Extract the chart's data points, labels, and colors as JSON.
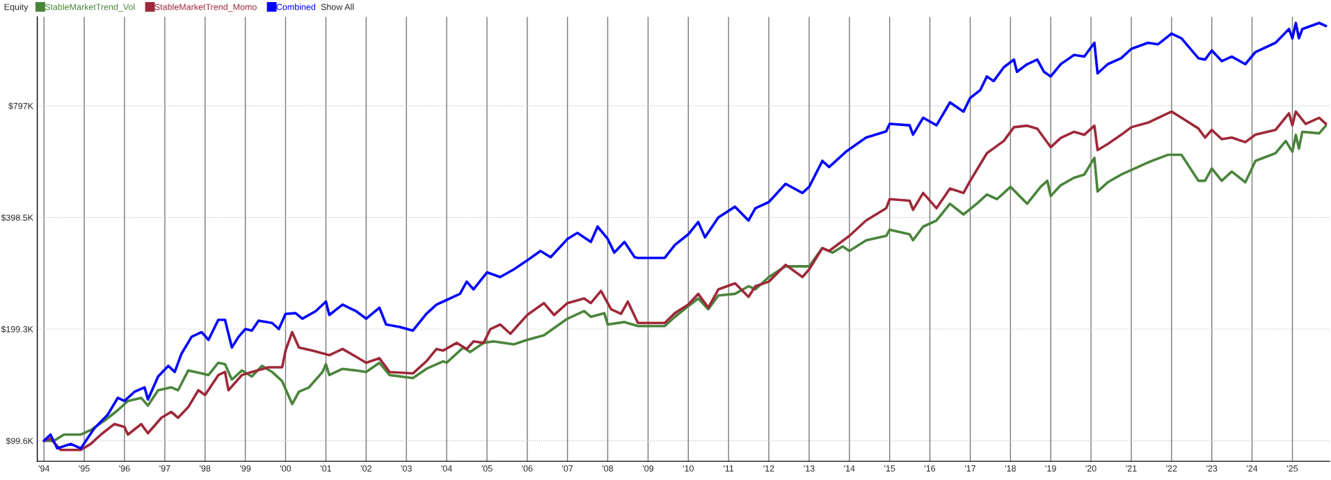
{
  "chart_data": {
    "type": "line",
    "title": "Equity",
    "annotations": [
      "Show All"
    ],
    "legend": "top left",
    "grid": true,
    "log": "y",
    "line_style": "solid",
    "marker": "none",
    "xlim": [
      "1993-11-01",
      "2025-12-05"
    ],
    "xticks": [
      {
        "value": "1994-01-01",
        "label": "'94"
      },
      {
        "value": "1995-01-01",
        "label": "'95"
      },
      {
        "value": "1996-01-01",
        "label": "'96"
      },
      {
        "value": "1997-01-01",
        "label": "'97"
      },
      {
        "value": "1998-01-01",
        "label": "'98"
      },
      {
        "value": "1999-01-01",
        "label": "'99"
      },
      {
        "value": "2000-01-01",
        "label": "'00"
      },
      {
        "value": "2001-01-01",
        "label": "'01"
      },
      {
        "value": "2002-01-01",
        "label": "'02"
      },
      {
        "value": "2003-01-01",
        "label": "'03"
      },
      {
        "value": "2004-01-01",
        "label": "'04"
      },
      {
        "value": "2005-01-01",
        "label": "'05"
      },
      {
        "value": "2006-01-01",
        "label": "'06"
      },
      {
        "value": "2007-01-01",
        "label": "'07"
      },
      {
        "value": "2008-01-01",
        "label": "'08"
      },
      {
        "value": "2009-01-01",
        "label": "'09"
      },
      {
        "value": "2010-01-01",
        "label": "'10"
      },
      {
        "value": "2011-01-01",
        "label": "'11"
      },
      {
        "value": "2012-01-01",
        "label": "'12"
      },
      {
        "value": "2013-01-01",
        "label": "'13"
      },
      {
        "value": "2014-01-01",
        "label": "'14"
      },
      {
        "value": "2015-01-01",
        "label": "'15"
      },
      {
        "value": "2016-01-01",
        "label": "'16"
      },
      {
        "value": "2017-01-01",
        "label": "'17"
      },
      {
        "value": "2018-01-01",
        "label": "'18"
      },
      {
        "value": "2019-01-01",
        "label": "'19"
      },
      {
        "value": "2020-01-01",
        "label": "'20"
      },
      {
        "value": "2021-01-01",
        "label": "'21"
      },
      {
        "value": "2022-01-01",
        "label": "'22"
      },
      {
        "value": "2023-01-01",
        "label": "'23"
      },
      {
        "value": "2024-01-01",
        "label": "'24"
      },
      {
        "value": "2025-01-01",
        "label": "'25"
      }
    ],
    "ylim": [
      87.7,
      1385
    ],
    "yticks": [
      {
        "value": 99.6,
        "label": "$99.6K"
      },
      {
        "value": 199.3,
        "label": "$199.3K"
      },
      {
        "value": 398.5,
        "label": "$398.5K"
      },
      {
        "value": 797,
        "label": "$797K"
      }
    ],
    "series": [
      {
        "name": "StableMarketTrend_Vol",
        "color": "#4a843b",
        "x": [
          "1994-01",
          "1994-04",
          "1994-07",
          "1994-12",
          "1995-03",
          "1995-07",
          "1995-11",
          "1996-02",
          "1996-06",
          "1996-08",
          "1996-11",
          "1997-03",
          "1997-05",
          "1997-08",
          "1997-12",
          "1998-02",
          "1998-05",
          "1998-07",
          "1998-09",
          "1998-12",
          "1999-03",
          "1999-06",
          "1999-09",
          "1999-12",
          "2000-03",
          "2000-05",
          "2000-08",
          "2000-12",
          "2001-01",
          "2001-02",
          "2001-06",
          "2001-10",
          "2002-01",
          "2002-05",
          "2002-08",
          "2003-03",
          "2003-07",
          "2003-12",
          "2004-01",
          "2004-06",
          "2004-08",
          "2004-12",
          "2005-03",
          "2005-09",
          "2006-01",
          "2006-06",
          "2007-01",
          "2007-06",
          "2007-08",
          "2007-12",
          "2008-01",
          "2008-06",
          "2008-10",
          "2009-06",
          "2009-09",
          "2010-01",
          "2010-04",
          "2010-07",
          "2010-10",
          "2011-03",
          "2011-07",
          "2011-09",
          "2012-01",
          "2012-06",
          "2012-11",
          "2013-01",
          "2013-05",
          "2013-08",
          "2013-11",
          "2014-01",
          "2014-06",
          "2014-12",
          "2015-01",
          "2015-07",
          "2015-08",
          "2015-11",
          "2016-03",
          "2016-07",
          "2016-11",
          "2017-03",
          "2017-06",
          "2017-09",
          "2018-01",
          "2018-06",
          "2018-10",
          "2018-12",
          "2019-01",
          "2019-04",
          "2019-08",
          "2019-11",
          "2020-02",
          "2020-03",
          "2020-06",
          "2020-10",
          "2021-01",
          "2021-06",
          "2021-12",
          "2022-04",
          "2022-09",
          "2022-11",
          "2023-01",
          "2023-04",
          "2023-07",
          "2023-11",
          "2024-02",
          "2024-08",
          "2024-11",
          "2025-01",
          "2025-02",
          "2025-03",
          "2025-04",
          "2025-09",
          "2025-11"
        ],
        "values": [
          99.6,
          99.6,
          103.5,
          103.5,
          106.5,
          112.7,
          120.4,
          127.5,
          130,
          123.9,
          136.3,
          138.8,
          136.3,
          154.1,
          151.3,
          149.8,
          161.7,
          160.2,
          145.6,
          154.1,
          148.4,
          158.6,
          152.7,
          144.2,
          125.1,
          135,
          138.8,
          152.7,
          160.2,
          149.8,
          155.7,
          154.1,
          152.7,
          161.7,
          149.8,
          147,
          155.7,
          163.2,
          161.7,
          177.8,
          172.8,
          182.9,
          184.6,
          181.2,
          186.4,
          191.7,
          212.6,
          222.8,
          215,
          220,
          205,
          208.2,
          203,
          203,
          215,
          229.8,
          241,
          225.4,
          245.5,
          248,
          260,
          255,
          275.3,
          294.2,
          294.2,
          294.2,
          329.6,
          320.4,
          332.9,
          323.6,
          345.8,
          355.5,
          369.4,
          359,
          345.8,
          376.5,
          391,
          434,
          406,
          434,
          459.5,
          446.5,
          481.8,
          434,
          481.8,
          500.5,
          455,
          486.6,
          510,
          520,
          577,
          468.2,
          495.7,
          520,
          534.8,
          560.7,
          588.2,
          588.2,
          500.5,
          500.5,
          540,
          500.5,
          530,
          495.7,
          566.3,
          593.8,
          640.8,
          599.4,
          665.5,
          611,
          678.2,
          671.9,
          704.5
        ]
      },
      {
        "name": "StableMarketTrend_Momo",
        "color": "#9e2838",
        "x": [
          "1994-01",
          "1994-03",
          "1994-06",
          "1994-12",
          "1995-03",
          "1995-06",
          "1995-10",
          "1996-01",
          "1996-02",
          "1996-06",
          "1996-08",
          "1996-12",
          "1997-03",
          "1997-05",
          "1997-08",
          "1997-11",
          "1998-01",
          "1998-05",
          "1998-07",
          "1998-08",
          "1998-12",
          "1999-03",
          "1999-08",
          "1999-12",
          "2000-01",
          "2000-03",
          "2000-05",
          "2000-09",
          "2001-02",
          "2001-06",
          "2001-10",
          "2002-01",
          "2002-05",
          "2002-08",
          "2003-03",
          "2003-07",
          "2003-10",
          "2003-12",
          "2004-04",
          "2004-07",
          "2004-09",
          "2004-12",
          "2005-02",
          "2005-05",
          "2005-08",
          "2006-01",
          "2006-06",
          "2006-09",
          "2007-01",
          "2007-06",
          "2007-08",
          "2007-11",
          "2008-02",
          "2008-05",
          "2008-07",
          "2008-10",
          "2009-06",
          "2009-09",
          "2010-01",
          "2010-04",
          "2010-07",
          "2010-10",
          "2011-03",
          "2011-07",
          "2011-09",
          "2012-01",
          "2012-06",
          "2012-11",
          "2013-01",
          "2013-05",
          "2013-07",
          "2014-01",
          "2014-06",
          "2014-12",
          "2015-01",
          "2015-07",
          "2015-08",
          "2015-11",
          "2016-03",
          "2016-07",
          "2016-11",
          "2017-01",
          "2017-06",
          "2017-11",
          "2018-02",
          "2018-06",
          "2018-09",
          "2019-01",
          "2019-04",
          "2019-08",
          "2019-11",
          "2020-02",
          "2020-03",
          "2020-06",
          "2020-10",
          "2021-01",
          "2021-06",
          "2022-01",
          "2022-04",
          "2022-09",
          "2022-11",
          "2023-01",
          "2023-04",
          "2023-07",
          "2023-11",
          "2024-02",
          "2024-08",
          "2024-12",
          "2025-01",
          "2025-02",
          "2025-05",
          "2025-09",
          "2025-11"
        ],
        "values": [
          99.6,
          101,
          94.1,
          94.1,
          97.7,
          103.5,
          110.5,
          108.5,
          103.5,
          110.5,
          104.4,
          114.9,
          119.2,
          114.9,
          122.7,
          136.3,
          132.4,
          149.8,
          152.7,
          136.3,
          149.8,
          152.7,
          157.2,
          157.2,
          174.4,
          195.5,
          177.8,
          174.4,
          169.5,
          176.1,
          167.9,
          161.7,
          166.3,
          152.7,
          151.3,
          163.2,
          176.1,
          174.4,
          182.9,
          176.1,
          184.6,
          182.9,
          199.3,
          205,
          193.6,
          217.5,
          234.2,
          217.5,
          234.2,
          241,
          234.2,
          252.7,
          225.4,
          219,
          236.4,
          207,
          207,
          220,
          232,
          248,
          227.6,
          255,
          264.8,
          243.3,
          260,
          267.5,
          297,
          275.3,
          288.6,
          329.6,
          323.6,
          355.5,
          391,
          422,
          446.5,
          442.2,
          417.7,
          464,
          422,
          477,
          464,
          500.5,
          593.8,
          640.8,
          697.8,
          704.5,
          691.4,
          616.5,
          652.8,
          678.2,
          665.5,
          704.5,
          605.3,
          628.8,
          665.5,
          697.8,
          717.7,
          769,
          740,
          692.6,
          654.4,
          686.2,
          648,
          654.4,
          636,
          666.3,
          686.2,
          761,
          706,
          769,
          712.5,
          740,
          712.5
        ]
      },
      {
        "name": "Combined",
        "color": "#0000ff",
        "x": [
          "1994-01",
          "1994-03",
          "1994-05",
          "1994-09",
          "1994-12",
          "1995-04",
          "1995-08",
          "1995-11",
          "1996-01",
          "1996-04",
          "1996-07",
          "1996-08",
          "1996-11",
          "1997-02",
          "1997-04",
          "1997-06",
          "1997-09",
          "1997-12",
          "1998-02",
          "1998-05",
          "1998-07",
          "1998-09",
          "1998-11",
          "1999-01",
          "1999-03",
          "1999-05",
          "1999-09",
          "1999-11",
          "2000-01",
          "2000-04",
          "2000-06",
          "2000-10",
          "2001-01",
          "2001-02",
          "2001-06",
          "2001-10",
          "2002-01",
          "2002-05",
          "2002-07",
          "2002-11",
          "2003-03",
          "2003-07",
          "2003-10",
          "2003-12",
          "2004-05",
          "2004-07",
          "2004-09",
          "2005-01",
          "2005-05",
          "2005-09",
          "2006-01",
          "2006-05",
          "2006-08",
          "2007-01",
          "2007-04",
          "2007-08",
          "2007-10",
          "2008-01",
          "2008-03",
          "2008-06",
          "2008-09",
          "2008-10",
          "2009-06",
          "2009-09",
          "2010-01",
          "2010-04",
          "2010-06",
          "2010-10",
          "2011-03",
          "2011-07",
          "2011-09",
          "2012-01",
          "2012-06",
          "2012-11",
          "2013-01",
          "2013-05",
          "2013-07",
          "2013-12",
          "2014-06",
          "2014-12",
          "2015-01",
          "2015-07",
          "2015-08",
          "2015-11",
          "2016-03",
          "2016-07",
          "2016-11",
          "2017-01",
          "2017-04",
          "2017-06",
          "2017-08",
          "2017-11",
          "2018-02",
          "2018-03",
          "2018-06",
          "2018-09",
          "2018-11",
          "2019-01",
          "2019-04",
          "2019-08",
          "2019-11",
          "2020-02",
          "2020-03",
          "2020-06",
          "2020-10",
          "2021-01",
          "2021-06",
          "2021-09",
          "2022-01",
          "2022-04",
          "2022-09",
          "2022-11",
          "2023-01",
          "2023-04",
          "2023-07",
          "2023-11",
          "2024-02",
          "2024-08",
          "2024-12",
          "2025-01",
          "2025-02",
          "2025-03",
          "2025-04",
          "2025-09",
          "2025-11"
        ],
        "values": [
          99.6,
          103.5,
          95,
          97.7,
          95,
          107.5,
          117,
          130,
          127.5,
          135,
          138.8,
          128.7,
          148.4,
          158.6,
          152.7,
          171,
          190,
          195.5,
          186.4,
          211,
          211,
          177.8,
          190,
          199.3,
          197.4,
          210,
          207,
          199.3,
          219,
          220,
          212.6,
          222.8,
          236.4,
          217.5,
          232,
          222.8,
          212.6,
          227.6,
          205,
          202,
          197.4,
          219,
          232,
          236.4,
          248,
          267.5,
          255,
          283.4,
          275.3,
          288.6,
          305.3,
          323.6,
          311.4,
          348.8,
          362.1,
          342.3,
          376.5,
          348.8,
          320.4,
          342.3,
          311.4,
          310,
          310,
          336,
          359,
          387.4,
          352.3,
          398.5,
          426,
          391,
          422,
          438.4,
          491,
          464,
          481.8,
          566.3,
          545,
          599.4,
          654.4,
          680,
          712.5,
          706,
          666.3,
          740,
          706,
          814,
          769,
          837,
          878,
          956.4,
          929,
          1012,
          1062,
          984,
          1032,
          1062,
          984,
          956.4,
          1032,
          1092.6,
          1082,
          1178.6,
          974.7,
          1032,
          1071,
          1135,
          1178.6,
          1167.6,
          1248,
          1212,
          1071,
          1062,
          1124,
          1052,
          1082,
          1032,
          1113,
          1178.6,
          1284,
          1212,
          1333,
          1212,
          1284,
          1333,
          1308
        ]
      }
    ]
  }
}
